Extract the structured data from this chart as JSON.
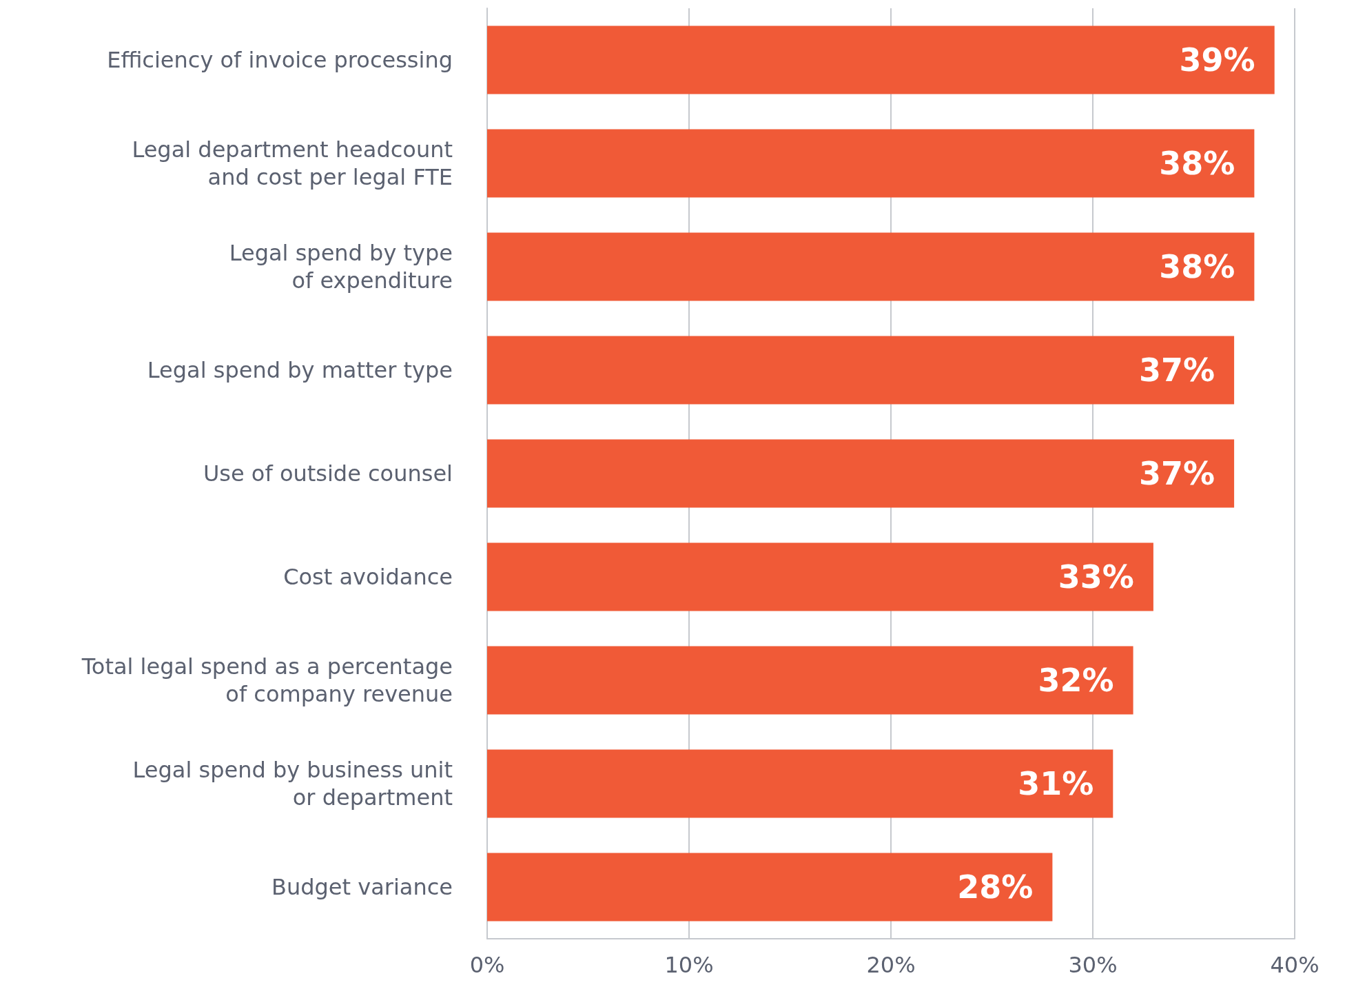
{
  "chart_data": {
    "type": "bar",
    "orientation": "horizontal",
    "categories": [
      "Efficiency of invoice processing",
      "Legal department headcount\nand cost per legal FTE",
      "Legal spend by type\nof expenditure",
      "Legal spend by matter type",
      "Use of outside counsel",
      "Cost avoidance",
      "Total legal spend as a percentage\nof company revenue",
      "Legal spend by business unit\nor department",
      "Budget variance"
    ],
    "values": [
      39,
      38,
      38,
      37,
      37,
      33,
      32,
      31,
      28
    ],
    "value_labels": [
      "39%",
      "38%",
      "38%",
      "37%",
      "37%",
      "33%",
      "32%",
      "31%",
      "28%"
    ],
    "color": "#f05a37",
    "xlim": [
      0,
      40
    ],
    "xticks": [
      {
        "value": 0,
        "label": "0%"
      },
      {
        "value": 10,
        "label": "10%"
      },
      {
        "value": 20,
        "label": "20%"
      },
      {
        "value": 30,
        "label": "30%"
      },
      {
        "value": 40,
        "label": "40%"
      }
    ],
    "grid": "x"
  }
}
